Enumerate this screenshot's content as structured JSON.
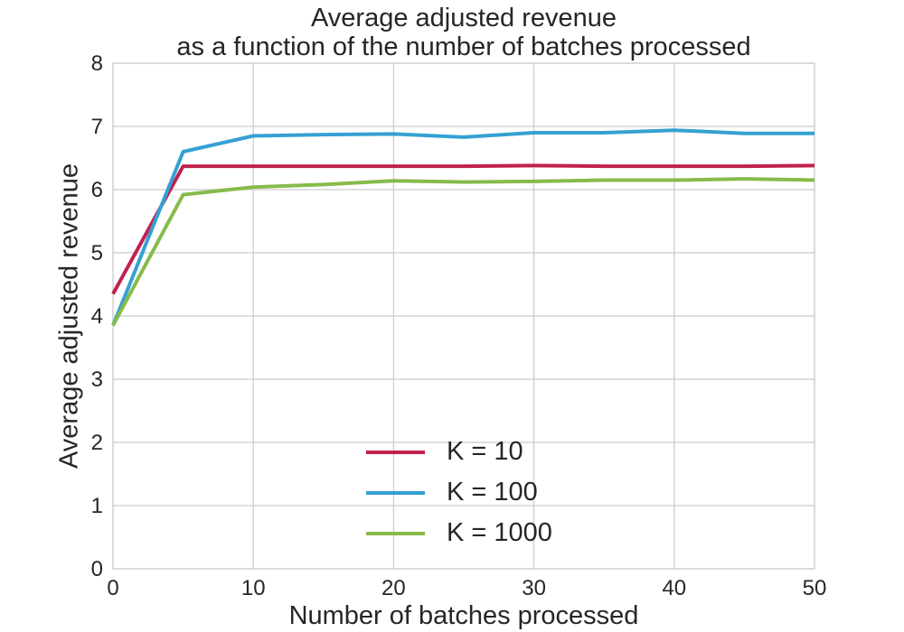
{
  "chart_data": {
    "type": "line",
    "title_lines": [
      "Average adjusted revenue",
      "as a function of the number of batches processed"
    ],
    "xlabel": "Number of batches processed",
    "ylabel": "Average adjusted revenue",
    "xlim": [
      0,
      50
    ],
    "ylim": [
      0,
      8
    ],
    "xticks": [
      0,
      10,
      20,
      30,
      40,
      50
    ],
    "yticks": [
      0,
      1,
      2,
      3,
      4,
      5,
      6,
      7,
      8
    ],
    "grid": true,
    "legend_position": "lower-center",
    "x": [
      0,
      5,
      10,
      15,
      20,
      25,
      30,
      35,
      40,
      45,
      50
    ],
    "series": [
      {
        "name": "K = 10",
        "color": "#c0214e",
        "values": [
          4.35,
          6.37,
          6.37,
          6.37,
          6.37,
          6.37,
          6.38,
          6.37,
          6.37,
          6.37,
          6.38
        ]
      },
      {
        "name": "K = 100",
        "color": "#35a0d3",
        "values": [
          3.85,
          6.6,
          6.85,
          6.87,
          6.88,
          6.83,
          6.9,
          6.9,
          6.94,
          6.89,
          6.89
        ]
      },
      {
        "name": "K = 1000",
        "color": "#86bb4a",
        "values": [
          3.85,
          5.92,
          6.04,
          6.08,
          6.14,
          6.12,
          6.13,
          6.15,
          6.15,
          6.17,
          6.15
        ]
      }
    ]
  }
}
